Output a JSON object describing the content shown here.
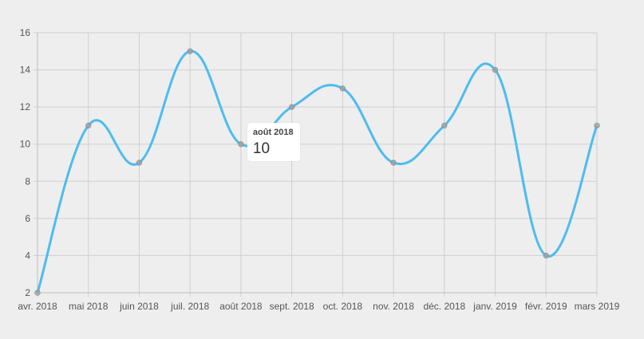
{
  "chart_data": {
    "type": "line",
    "categories": [
      "avr. 2018",
      "mai 2018",
      "juin 2018",
      "juil. 2018",
      "août 2018",
      "sept. 2018",
      "oct. 2018",
      "nov. 2018",
      "déc. 2018",
      "janv. 2019",
      "févr. 2019",
      "mars 2019"
    ],
    "series": [
      {
        "values": [
          2,
          11,
          9,
          15,
          10,
          12,
          13,
          9,
          11,
          14,
          4,
          11
        ],
        "color": "#4dbcf0"
      }
    ],
    "ylim": [
      2,
      16
    ],
    "yticks": [
      2,
      4,
      6,
      8,
      10,
      12,
      14,
      16
    ],
    "grid": true,
    "curve": "smooth"
  },
  "tooltip": {
    "title": "août 2018",
    "value": "10",
    "category_index": 4
  }
}
